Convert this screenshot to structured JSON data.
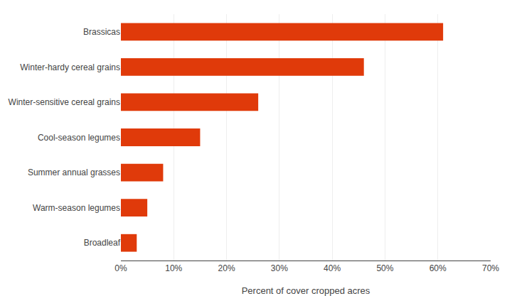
{
  "chart_data": {
    "type": "bar",
    "orientation": "horizontal",
    "categories": [
      "Brassicas",
      "Winter-hardy cereal grains",
      "Winter-sensitive cereal grains",
      "Cool-season legumes",
      "Summer annual grasses",
      "Warm-season legumes",
      "Broadleaf"
    ],
    "values": [
      61,
      46,
      26,
      15,
      8,
      5,
      3
    ],
    "color": "#E03A0A",
    "xlabel": "Percent of cover cropped acres",
    "xlim": [
      0,
      70
    ],
    "xticks": [
      {
        "value": 0,
        "label": "0%"
      },
      {
        "value": 10,
        "label": "10%"
      },
      {
        "value": 20,
        "label": "20%"
      },
      {
        "value": 30,
        "label": "30%"
      },
      {
        "value": 40,
        "label": "40%"
      },
      {
        "value": 50,
        "label": "50%"
      },
      {
        "value": 60,
        "label": "60%"
      },
      {
        "value": 70,
        "label": "70%"
      }
    ],
    "grid": true
  }
}
